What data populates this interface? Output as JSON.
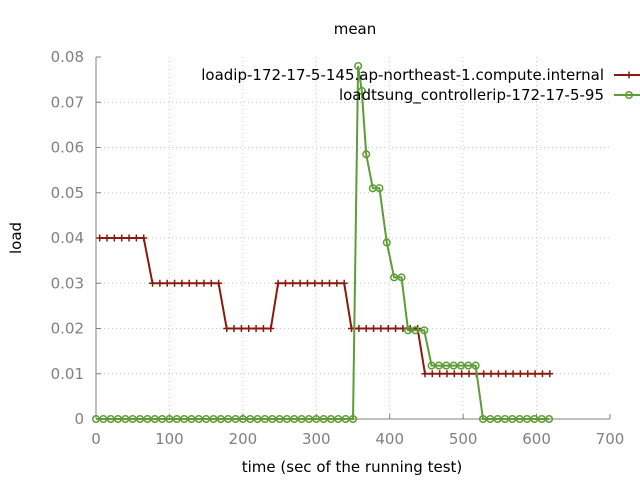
{
  "chart_data": {
    "type": "line",
    "title": "mean",
    "xlabel": "time (sec of the running test)",
    "ylabel": "load",
    "xlim": [
      0,
      700
    ],
    "ylim": [
      0,
      0.08
    ],
    "x_ticks": [
      "0",
      "100",
      "200",
      "300",
      "400",
      "500",
      "600",
      "700"
    ],
    "y_ticks": [
      "0",
      "0.01",
      "0.02",
      "0.03",
      "0.04",
      "0.05",
      "0.06",
      "0.07",
      "0.08"
    ],
    "grid": true,
    "legend_position": "top-right",
    "series": [
      {
        "name": "loadip-172-17-5-145.ap-northeast-1.compute.internal",
        "color": "#8b1a0e",
        "marker": "plus",
        "points": [
          [
            5,
            0.04
          ],
          [
            15,
            0.04
          ],
          [
            25,
            0.04
          ],
          [
            35,
            0.04
          ],
          [
            45,
            0.04
          ],
          [
            55,
            0.04
          ],
          [
            65,
            0.04
          ],
          [
            77,
            0.03
          ],
          [
            87,
            0.03
          ],
          [
            97,
            0.03
          ],
          [
            107,
            0.03
          ],
          [
            117,
            0.03
          ],
          [
            127,
            0.03
          ],
          [
            137,
            0.03
          ],
          [
            147,
            0.03
          ],
          [
            157,
            0.03
          ],
          [
            167,
            0.03
          ],
          [
            178,
            0.02
          ],
          [
            188,
            0.02
          ],
          [
            198,
            0.02
          ],
          [
            208,
            0.02
          ],
          [
            218,
            0.02
          ],
          [
            228,
            0.02
          ],
          [
            238,
            0.02
          ],
          [
            248,
            0.03
          ],
          [
            258,
            0.03
          ],
          [
            268,
            0.03
          ],
          [
            278,
            0.03
          ],
          [
            288,
            0.03
          ],
          [
            298,
            0.03
          ],
          [
            308,
            0.03
          ],
          [
            318,
            0.03
          ],
          [
            328,
            0.03
          ],
          [
            338,
            0.03
          ],
          [
            348,
            0.02
          ],
          [
            358,
            0.02
          ],
          [
            368,
            0.02
          ],
          [
            378,
            0.02
          ],
          [
            388,
            0.02
          ],
          [
            398,
            0.02
          ],
          [
            408,
            0.02
          ],
          [
            418,
            0.02
          ],
          [
            428,
            0.02
          ],
          [
            438,
            0.02
          ],
          [
            448,
            0.01
          ],
          [
            458,
            0.01
          ],
          [
            468,
            0.01
          ],
          [
            478,
            0.01
          ],
          [
            488,
            0.01
          ],
          [
            498,
            0.01
          ],
          [
            508,
            0.01
          ],
          [
            518,
            0.01
          ],
          [
            528,
            0.01
          ],
          [
            538,
            0.01
          ],
          [
            548,
            0.01
          ],
          [
            558,
            0.01
          ],
          [
            568,
            0.01
          ],
          [
            578,
            0.01
          ],
          [
            588,
            0.01
          ],
          [
            598,
            0.01
          ],
          [
            608,
            0.01
          ],
          [
            618,
            0.01
          ]
        ]
      },
      {
        "name": "loadtsung_controllerip-172-17-5-95",
        "color": "#5e9c36",
        "marker": "circle",
        "points": [
          [
            0,
            0
          ],
          [
            10,
            0
          ],
          [
            20,
            0
          ],
          [
            30,
            0
          ],
          [
            40,
            0
          ],
          [
            50,
            0
          ],
          [
            60,
            0
          ],
          [
            70,
            0
          ],
          [
            80,
            0
          ],
          [
            90,
            0
          ],
          [
            100,
            0
          ],
          [
            110,
            0
          ],
          [
            120,
            0
          ],
          [
            130,
            0
          ],
          [
            140,
            0
          ],
          [
            150,
            0
          ],
          [
            160,
            0
          ],
          [
            170,
            0
          ],
          [
            180,
            0
          ],
          [
            190,
            0
          ],
          [
            200,
            0
          ],
          [
            210,
            0
          ],
          [
            220,
            0
          ],
          [
            230,
            0
          ],
          [
            240,
            0
          ],
          [
            250,
            0
          ],
          [
            260,
            0
          ],
          [
            270,
            0
          ],
          [
            280,
            0
          ],
          [
            290,
            0
          ],
          [
            300,
            0
          ],
          [
            310,
            0
          ],
          [
            320,
            0
          ],
          [
            330,
            0
          ],
          [
            340,
            0
          ],
          [
            350,
            0
          ],
          [
            357,
            0.078
          ],
          [
            362,
            0.0725
          ],
          [
            368,
            0.0585
          ],
          [
            377,
            0.051
          ],
          [
            386,
            0.051
          ],
          [
            396,
            0.039
          ],
          [
            406,
            0.0313
          ],
          [
            416,
            0.0313
          ],
          [
            425,
            0.0196
          ],
          [
            435,
            0.0196
          ],
          [
            447,
            0.0196
          ],
          [
            457,
            0.0118
          ],
          [
            467,
            0.0118
          ],
          [
            477,
            0.0118
          ],
          [
            487,
            0.0118
          ],
          [
            497,
            0.0118
          ],
          [
            507,
            0.0118
          ],
          [
            517,
            0.0118
          ],
          [
            527,
            0
          ],
          [
            537,
            0
          ],
          [
            547,
            0
          ],
          [
            557,
            0
          ],
          [
            567,
            0
          ],
          [
            577,
            0
          ],
          [
            587,
            0
          ],
          [
            597,
            0
          ],
          [
            607,
            0
          ],
          [
            617,
            0
          ]
        ]
      }
    ]
  }
}
